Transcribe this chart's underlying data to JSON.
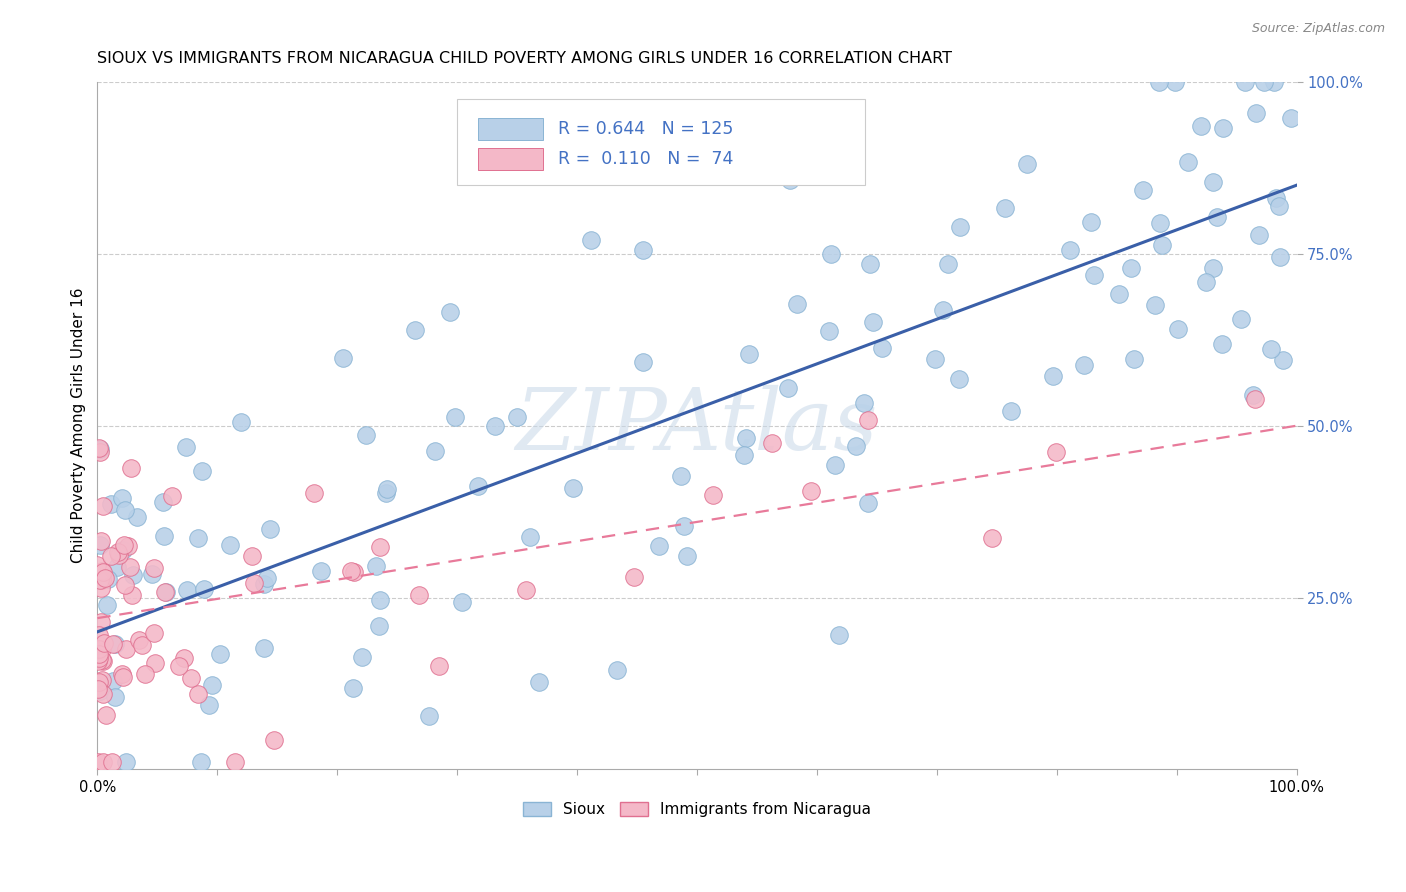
{
  "title": "SIOUX VS IMMIGRANTS FROM NICARAGUA CHILD POVERTY AMONG GIRLS UNDER 16 CORRELATION CHART",
  "source": "Source: ZipAtlas.com",
  "ylabel": "Child Poverty Among Girls Under 16",
  "sioux_R": 0.644,
  "sioux_N": 125,
  "nic_R": 0.11,
  "nic_N": 74,
  "sioux_color": "#b8d0e8",
  "sioux_edge": "#8ab4d4",
  "nic_color": "#f4b8c8",
  "nic_edge": "#e07090",
  "trendline_sioux_color": "#3a5fa8",
  "trendline_nic_color": "#e87a9a",
  "ytick_color": "#4472c4",
  "watermark": "ZIPAtlas",
  "background_color": "#ffffff",
  "grid_color": "#cccccc",
  "trendline_sioux_intercept": 0.2,
  "trendline_sioux_slope": 0.65,
  "trendline_nic_intercept": 0.22,
  "trendline_nic_slope": 0.28
}
